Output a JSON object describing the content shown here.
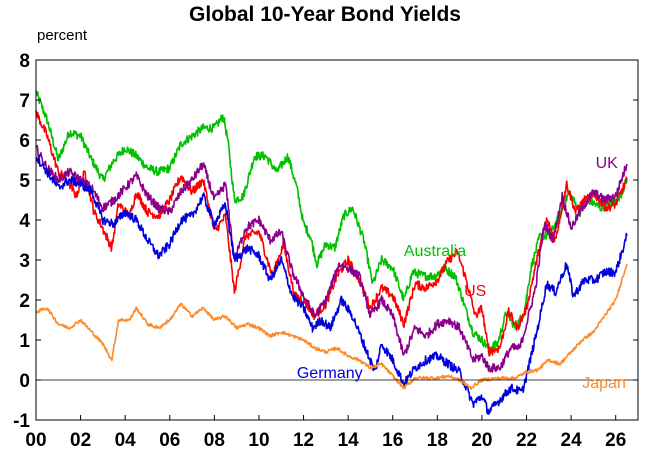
{
  "chart_data": {
    "type": "line",
    "title": "Global 10-Year Bond Yields",
    "ylabel": "percent",
    "xlabel": "",
    "xlim": [
      2000,
      2027
    ],
    "ylim": [
      -1,
      8
    ],
    "x_ticks": [
      2000,
      2002,
      2004,
      2006,
      2008,
      2010,
      2012,
      2014,
      2016,
      2018,
      2020,
      2022,
      2024,
      2026
    ],
    "x_tick_labels": [
      "00",
      "02",
      "04",
      "06",
      "08",
      "10",
      "12",
      "14",
      "16",
      "18",
      "20",
      "22",
      "24",
      "26"
    ],
    "y_ticks": [
      -1,
      0,
      1,
      2,
      3,
      4,
      5,
      6,
      7,
      8
    ],
    "y_tick_labels": [
      "-1",
      "0",
      "1",
      "2",
      "3",
      "4",
      "5",
      "6",
      "7",
      "8"
    ],
    "grid": false,
    "legend": "inline labels",
    "series": [
      {
        "name": "Australia",
        "color": "#00c000",
        "points": [
          [
            2000.0,
            7.2
          ],
          [
            2000.5,
            6.5
          ],
          [
            2001.0,
            5.5
          ],
          [
            2001.5,
            6.2
          ],
          [
            2002.0,
            6.1
          ],
          [
            2002.5,
            5.5
          ],
          [
            2003.0,
            5.0
          ],
          [
            2003.5,
            5.5
          ],
          [
            2004.0,
            5.8
          ],
          [
            2004.5,
            5.6
          ],
          [
            2005.0,
            5.3
          ],
          [
            2005.5,
            5.2
          ],
          [
            2006.0,
            5.3
          ],
          [
            2006.5,
            5.9
          ],
          [
            2007.0,
            6.1
          ],
          [
            2007.5,
            6.3
          ],
          [
            2008.0,
            6.3
          ],
          [
            2008.4,
            6.6
          ],
          [
            2008.6,
            6.0
          ],
          [
            2008.9,
            4.5
          ],
          [
            2009.3,
            4.6
          ],
          [
            2009.8,
            5.6
          ],
          [
            2010.3,
            5.6
          ],
          [
            2010.8,
            5.2
          ],
          [
            2011.3,
            5.6
          ],
          [
            2011.7,
            4.8
          ],
          [
            2012.0,
            3.9
          ],
          [
            2012.3,
            3.6
          ],
          [
            2012.6,
            2.9
          ],
          [
            2013.0,
            3.4
          ],
          [
            2013.4,
            3.3
          ],
          [
            2013.8,
            4.1
          ],
          [
            2014.2,
            4.3
          ],
          [
            2014.7,
            3.5
          ],
          [
            2015.1,
            2.4
          ],
          [
            2015.5,
            3.0
          ],
          [
            2016.0,
            2.8
          ],
          [
            2016.5,
            2.0
          ],
          [
            2016.9,
            2.7
          ],
          [
            2017.4,
            2.6
          ],
          [
            2017.9,
            2.6
          ],
          [
            2018.3,
            2.8
          ],
          [
            2018.8,
            2.6
          ],
          [
            2019.2,
            1.9
          ],
          [
            2019.6,
            1.2
          ],
          [
            2020.0,
            1.0
          ],
          [
            2020.3,
            0.8
          ],
          [
            2020.7,
            0.9
          ],
          [
            2021.1,
            1.7
          ],
          [
            2021.5,
            1.3
          ],
          [
            2021.9,
            1.7
          ],
          [
            2022.2,
            2.8
          ],
          [
            2022.6,
            3.6
          ],
          [
            2023.0,
            3.6
          ],
          [
            2023.5,
            4.1
          ],
          [
            2023.9,
            4.7
          ],
          [
            2024.4,
            4.2
          ],
          [
            2024.8,
            4.5
          ],
          [
            2025.3,
            4.3
          ],
          [
            2025.8,
            4.4
          ],
          [
            2026.2,
            4.6
          ],
          [
            2026.5,
            5.0
          ]
        ]
      },
      {
        "name": "US",
        "color": "#ff0000",
        "points": [
          [
            2000.0,
            6.7
          ],
          [
            2000.5,
            6.1
          ],
          [
            2001.0,
            5.2
          ],
          [
            2001.4,
            5.0
          ],
          [
            2001.8,
            4.6
          ],
          [
            2002.2,
            5.2
          ],
          [
            2002.6,
            4.2
          ],
          [
            2002.9,
            3.9
          ],
          [
            2003.4,
            3.3
          ],
          [
            2003.7,
            4.4
          ],
          [
            2004.2,
            4.1
          ],
          [
            2004.5,
            4.7
          ],
          [
            2005.0,
            4.2
          ],
          [
            2005.5,
            4.1
          ],
          [
            2006.0,
            4.5
          ],
          [
            2006.5,
            5.1
          ],
          [
            2007.0,
            4.7
          ],
          [
            2007.5,
            5.0
          ],
          [
            2008.0,
            3.7
          ],
          [
            2008.5,
            4.1
          ],
          [
            2008.9,
            2.2
          ],
          [
            2009.4,
            3.6
          ],
          [
            2010.0,
            3.7
          ],
          [
            2010.6,
            2.6
          ],
          [
            2011.1,
            3.4
          ],
          [
            2011.6,
            2.1
          ],
          [
            2012.0,
            2.0
          ],
          [
            2012.5,
            1.6
          ],
          [
            2013.0,
            1.9
          ],
          [
            2013.5,
            2.6
          ],
          [
            2014.0,
            3.0
          ],
          [
            2014.5,
            2.5
          ],
          [
            2015.0,
            1.8
          ],
          [
            2015.5,
            2.3
          ],
          [
            2016.0,
            2.1
          ],
          [
            2016.5,
            1.4
          ],
          [
            2017.0,
            2.4
          ],
          [
            2017.5,
            2.3
          ],
          [
            2018.0,
            2.5
          ],
          [
            2018.5,
            3.0
          ],
          [
            2018.9,
            3.2
          ],
          [
            2019.3,
            2.5
          ],
          [
            2019.7,
            1.6
          ],
          [
            2020.0,
            1.8
          ],
          [
            2020.3,
            0.7
          ],
          [
            2020.8,
            0.8
          ],
          [
            2021.2,
            1.7
          ],
          [
            2021.6,
            1.3
          ],
          [
            2022.0,
            1.8
          ],
          [
            2022.5,
            3.1
          ],
          [
            2022.9,
            4.0
          ],
          [
            2023.3,
            3.5
          ],
          [
            2023.8,
            4.9
          ],
          [
            2024.2,
            4.2
          ],
          [
            2024.6,
            4.5
          ],
          [
            2025.1,
            4.6
          ],
          [
            2025.6,
            4.3
          ],
          [
            2026.0,
            4.4
          ],
          [
            2026.5,
            5.0
          ]
        ]
      },
      {
        "name": "UK",
        "color": "#8b008b",
        "points": [
          [
            2000.0,
            5.8
          ],
          [
            2000.5,
            5.3
          ],
          [
            2001.0,
            5.0
          ],
          [
            2001.5,
            5.2
          ],
          [
            2002.0,
            5.0
          ],
          [
            2002.5,
            4.8
          ],
          [
            2003.0,
            4.3
          ],
          [
            2003.5,
            4.5
          ],
          [
            2004.0,
            4.8
          ],
          [
            2004.5,
            5.1
          ],
          [
            2005.0,
            4.6
          ],
          [
            2005.5,
            4.3
          ],
          [
            2006.0,
            4.2
          ],
          [
            2006.5,
            4.7
          ],
          [
            2007.0,
            5.0
          ],
          [
            2007.5,
            5.4
          ],
          [
            2008.0,
            4.5
          ],
          [
            2008.5,
            4.9
          ],
          [
            2008.9,
            3.0
          ],
          [
            2009.4,
            3.8
          ],
          [
            2010.0,
            4.0
          ],
          [
            2010.5,
            3.5
          ],
          [
            2011.0,
            3.7
          ],
          [
            2011.5,
            2.7
          ],
          [
            2012.0,
            2.1
          ],
          [
            2012.5,
            1.6
          ],
          [
            2013.0,
            2.0
          ],
          [
            2013.6,
            2.9
          ],
          [
            2014.0,
            2.8
          ],
          [
            2014.5,
            2.6
          ],
          [
            2015.0,
            1.6
          ],
          [
            2015.5,
            2.0
          ],
          [
            2016.0,
            1.6
          ],
          [
            2016.5,
            0.6
          ],
          [
            2017.0,
            1.3
          ],
          [
            2017.5,
            1.1
          ],
          [
            2018.0,
            1.4
          ],
          [
            2018.5,
            1.5
          ],
          [
            2019.0,
            1.3
          ],
          [
            2019.6,
            0.5
          ],
          [
            2020.0,
            0.6
          ],
          [
            2020.3,
            0.3
          ],
          [
            2020.8,
            0.3
          ],
          [
            2021.3,
            0.8
          ],
          [
            2021.7,
            0.8
          ],
          [
            2022.0,
            1.4
          ],
          [
            2022.4,
            2.3
          ],
          [
            2022.8,
            3.9
          ],
          [
            2023.2,
            3.5
          ],
          [
            2023.6,
            4.6
          ],
          [
            2024.0,
            3.8
          ],
          [
            2024.5,
            4.3
          ],
          [
            2025.0,
            4.7
          ],
          [
            2025.5,
            4.5
          ],
          [
            2026.0,
            4.6
          ],
          [
            2026.5,
            5.4
          ]
        ]
      },
      {
        "name": "Germany",
        "color": "#0000dd",
        "points": [
          [
            2000.0,
            5.6
          ],
          [
            2000.5,
            5.2
          ],
          [
            2001.0,
            4.8
          ],
          [
            2001.5,
            5.0
          ],
          [
            2002.0,
            4.9
          ],
          [
            2002.5,
            4.7
          ],
          [
            2003.0,
            4.0
          ],
          [
            2003.5,
            3.9
          ],
          [
            2004.0,
            4.2
          ],
          [
            2004.5,
            4.0
          ],
          [
            2005.0,
            3.5
          ],
          [
            2005.5,
            3.1
          ],
          [
            2006.0,
            3.4
          ],
          [
            2006.5,
            4.0
          ],
          [
            2007.0,
            4.1
          ],
          [
            2007.5,
            4.6
          ],
          [
            2008.0,
            3.9
          ],
          [
            2008.5,
            4.4
          ],
          [
            2008.9,
            3.0
          ],
          [
            2009.5,
            3.3
          ],
          [
            2010.0,
            3.1
          ],
          [
            2010.5,
            2.5
          ],
          [
            2011.0,
            3.0
          ],
          [
            2011.5,
            2.1
          ],
          [
            2012.0,
            1.8
          ],
          [
            2012.4,
            1.3
          ],
          [
            2012.8,
            1.5
          ],
          [
            2013.2,
            1.3
          ],
          [
            2013.7,
            2.0
          ],
          [
            2014.2,
            1.6
          ],
          [
            2014.7,
            0.9
          ],
          [
            2015.2,
            0.2
          ],
          [
            2015.5,
            0.9
          ],
          [
            2016.0,
            0.5
          ],
          [
            2016.5,
            -0.1
          ],
          [
            2017.0,
            0.3
          ],
          [
            2017.5,
            0.5
          ],
          [
            2018.0,
            0.6
          ],
          [
            2018.5,
            0.4
          ],
          [
            2019.0,
            0.2
          ],
          [
            2019.6,
            -0.6
          ],
          [
            2020.0,
            -0.4
          ],
          [
            2020.3,
            -0.8
          ],
          [
            2020.8,
            -0.5
          ],
          [
            2021.3,
            -0.2
          ],
          [
            2021.8,
            -0.3
          ],
          [
            2022.0,
            0.1
          ],
          [
            2022.5,
            1.3
          ],
          [
            2022.9,
            2.4
          ],
          [
            2023.3,
            2.2
          ],
          [
            2023.8,
            2.9
          ],
          [
            2024.1,
            2.1
          ],
          [
            2024.6,
            2.5
          ],
          [
            2025.1,
            2.5
          ],
          [
            2025.5,
            2.7
          ],
          [
            2026.0,
            2.7
          ],
          [
            2026.5,
            3.6
          ]
        ]
      },
      {
        "name": "Japan",
        "color": "#ff8a2a",
        "points": [
          [
            2000.0,
            1.7
          ],
          [
            2000.5,
            1.8
          ],
          [
            2001.0,
            1.4
          ],
          [
            2001.5,
            1.3
          ],
          [
            2002.0,
            1.5
          ],
          [
            2002.5,
            1.2
          ],
          [
            2003.0,
            0.9
          ],
          [
            2003.4,
            0.5
          ],
          [
            2003.7,
            1.5
          ],
          [
            2004.2,
            1.5
          ],
          [
            2004.5,
            1.8
          ],
          [
            2005.0,
            1.4
          ],
          [
            2005.5,
            1.3
          ],
          [
            2006.0,
            1.5
          ],
          [
            2006.5,
            1.9
          ],
          [
            2007.0,
            1.6
          ],
          [
            2007.5,
            1.8
          ],
          [
            2008.0,
            1.5
          ],
          [
            2008.5,
            1.6
          ],
          [
            2009.0,
            1.3
          ],
          [
            2009.5,
            1.4
          ],
          [
            2010.0,
            1.3
          ],
          [
            2010.5,
            1.1
          ],
          [
            2011.0,
            1.2
          ],
          [
            2011.5,
            1.1
          ],
          [
            2012.0,
            1.0
          ],
          [
            2012.5,
            0.8
          ],
          [
            2013.0,
            0.7
          ],
          [
            2013.5,
            0.8
          ],
          [
            2014.0,
            0.6
          ],
          [
            2014.5,
            0.5
          ],
          [
            2015.0,
            0.3
          ],
          [
            2015.5,
            0.4
          ],
          [
            2016.0,
            0.1
          ],
          [
            2016.5,
            -0.2
          ],
          [
            2017.0,
            0.05
          ],
          [
            2017.5,
            0.05
          ],
          [
            2018.0,
            0.05
          ],
          [
            2018.5,
            0.1
          ],
          [
            2019.0,
            0.0
          ],
          [
            2019.5,
            -0.2
          ],
          [
            2020.0,
            0.0
          ],
          [
            2020.5,
            0.03
          ],
          [
            2021.0,
            0.05
          ],
          [
            2021.5,
            0.05
          ],
          [
            2022.0,
            0.2
          ],
          [
            2022.5,
            0.25
          ],
          [
            2023.0,
            0.5
          ],
          [
            2023.5,
            0.4
          ],
          [
            2024.0,
            0.7
          ],
          [
            2024.5,
            1.0
          ],
          [
            2025.0,
            1.2
          ],
          [
            2025.5,
            1.6
          ],
          [
            2026.0,
            2.0
          ],
          [
            2026.5,
            2.9
          ]
        ]
      }
    ],
    "annotations": [
      {
        "series": "Australia",
        "text": "Australia",
        "x": 2016.5,
        "y": 3.1
      },
      {
        "series": "US",
        "text": "US",
        "x": 2019.2,
        "y": 2.1
      },
      {
        "series": "UK",
        "text": "UK",
        "x": 2025.1,
        "y": 5.3
      },
      {
        "series": "Germany",
        "text": "Germany",
        "x": 2011.7,
        "y": 0.05
      },
      {
        "series": "Japan",
        "text": "Japan",
        "x": 2024.5,
        "y": -0.2
      }
    ]
  }
}
